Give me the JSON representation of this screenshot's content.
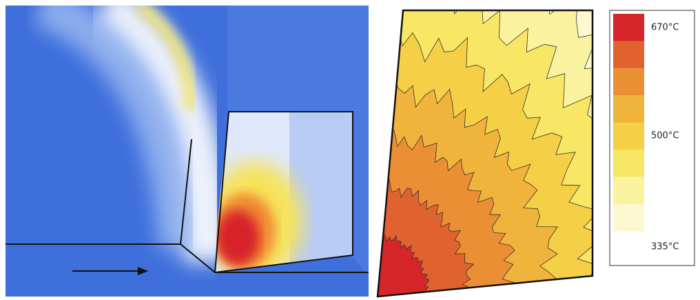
{
  "colorbar": {
    "colors": [
      "#d7262a",
      "#e0622e",
      "#eb8f35",
      "#f0b33c",
      "#f5cf45",
      "#f8e665",
      "#fbf2a0",
      "#fdf8d0"
    ],
    "labels": [
      "670°C",
      "500°C",
      "335°C"
    ]
  }
}
